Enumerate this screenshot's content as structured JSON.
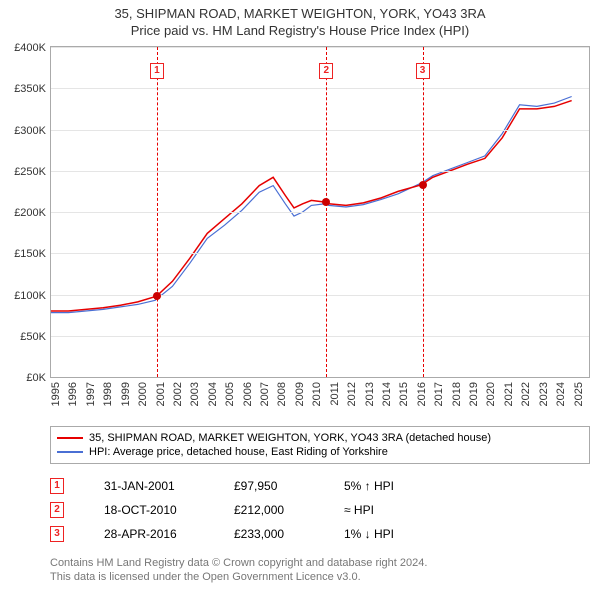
{
  "title": "35, SHIPMAN ROAD, MARKET WEIGHTON, YORK, YO43 3RA",
  "subtitle": "Price paid vs. HM Land Registry's House Price Index (HPI)",
  "chart": {
    "type": "line",
    "ylim": [
      0,
      400000
    ],
    "ytick_step": 50000,
    "yticks": [
      "£0K",
      "£50K",
      "£100K",
      "£150K",
      "£200K",
      "£250K",
      "£300K",
      "£350K",
      "£400K"
    ],
    "xlim": [
      1995,
      2026
    ],
    "xticks": [
      "1995",
      "1996",
      "1997",
      "1998",
      "1999",
      "2000",
      "2001",
      "2002",
      "2003",
      "2004",
      "2005",
      "2006",
      "2007",
      "2008",
      "2009",
      "2010",
      "2011",
      "2012",
      "2013",
      "2014",
      "2015",
      "2016",
      "2017",
      "2018",
      "2019",
      "2020",
      "2021",
      "2022",
      "2023",
      "2024",
      "2025"
    ],
    "grid_color": "#e5e5e5",
    "border_color": "#aaaaaa",
    "background_color": "#ffffff",
    "series": {
      "property": {
        "color": "#e60000",
        "width": 1.5,
        "label": "35, SHIPMAN ROAD, MARKET WEIGHTON, YORK, YO43 3RA (detached house)",
        "data": [
          [
            1995,
            80000
          ],
          [
            1996,
            80000
          ],
          [
            1997,
            82000
          ],
          [
            1998,
            84000
          ],
          [
            1999,
            87000
          ],
          [
            2000,
            91000
          ],
          [
            2001.08,
            97950
          ],
          [
            2002,
            116000
          ],
          [
            2003,
            144000
          ],
          [
            2004,
            174000
          ],
          [
            2005,
            192000
          ],
          [
            2006,
            210000
          ],
          [
            2007,
            232000
          ],
          [
            2007.8,
            242000
          ],
          [
            2008.5,
            220000
          ],
          [
            2009,
            205000
          ],
          [
            2009.5,
            210000
          ],
          [
            2010,
            214000
          ],
          [
            2010.8,
            212000
          ],
          [
            2011,
            210000
          ],
          [
            2012,
            208000
          ],
          [
            2013,
            211000
          ],
          [
            2014,
            217000
          ],
          [
            2015,
            225000
          ],
          [
            2016.33,
            233000
          ],
          [
            2017,
            242000
          ],
          [
            2018,
            250000
          ],
          [
            2019,
            258000
          ],
          [
            2020,
            265000
          ],
          [
            2021,
            290000
          ],
          [
            2022,
            325000
          ],
          [
            2023,
            325000
          ],
          [
            2024,
            328000
          ],
          [
            2025,
            335000
          ]
        ]
      },
      "hpi": {
        "color": "#4a6fd4",
        "width": 1.2,
        "label": "HPI: Average price, detached house, East Riding of Yorkshire",
        "data": [
          [
            1995,
            78000
          ],
          [
            1996,
            78000
          ],
          [
            1997,
            80000
          ],
          [
            1998,
            82000
          ],
          [
            1999,
            85000
          ],
          [
            2000,
            88000
          ],
          [
            2001,
            93000
          ],
          [
            2002,
            110000
          ],
          [
            2003,
            138000
          ],
          [
            2004,
            168000
          ],
          [
            2005,
            184000
          ],
          [
            2006,
            202000
          ],
          [
            2007,
            224000
          ],
          [
            2007.8,
            232000
          ],
          [
            2008.5,
            210000
          ],
          [
            2009,
            195000
          ],
          [
            2009.5,
            200000
          ],
          [
            2010,
            208000
          ],
          [
            2010.8,
            210000
          ],
          [
            2011,
            208000
          ],
          [
            2012,
            206000
          ],
          [
            2013,
            209000
          ],
          [
            2014,
            215000
          ],
          [
            2015,
            222000
          ],
          [
            2016.33,
            235000
          ],
          [
            2017,
            244000
          ],
          [
            2018,
            252000
          ],
          [
            2019,
            260000
          ],
          [
            2020,
            268000
          ],
          [
            2021,
            295000
          ],
          [
            2022,
            330000
          ],
          [
            2023,
            328000
          ],
          [
            2024,
            332000
          ],
          [
            2025,
            340000
          ]
        ]
      }
    },
    "sales_markers": [
      {
        "n": "1",
        "year": 2001.08,
        "price": 97950,
        "line_color": "#e60000"
      },
      {
        "n": "2",
        "year": 2010.8,
        "price": 212000,
        "line_color": "#e60000"
      },
      {
        "n": "3",
        "year": 2016.33,
        "price": 233000,
        "line_color": "#e60000"
      }
    ]
  },
  "legend": {
    "items": [
      {
        "color": "#e60000",
        "label_path": "chart.series.property.label"
      },
      {
        "color": "#4a6fd4",
        "label_path": "chart.series.hpi.label"
      }
    ]
  },
  "sales": [
    {
      "n": "1",
      "date": "31-JAN-2001",
      "price": "£97,950",
      "rel": "5% ↑ HPI"
    },
    {
      "n": "2",
      "date": "18-OCT-2010",
      "price": "£212,000",
      "rel": "≈ HPI"
    },
    {
      "n": "3",
      "date": "28-APR-2016",
      "price": "£233,000",
      "rel": "1% ↓ HPI"
    }
  ],
  "footnote1": "Contains HM Land Registry data © Crown copyright and database right 2024.",
  "footnote2": "This data is licensed under the Open Government Licence v3.0."
}
